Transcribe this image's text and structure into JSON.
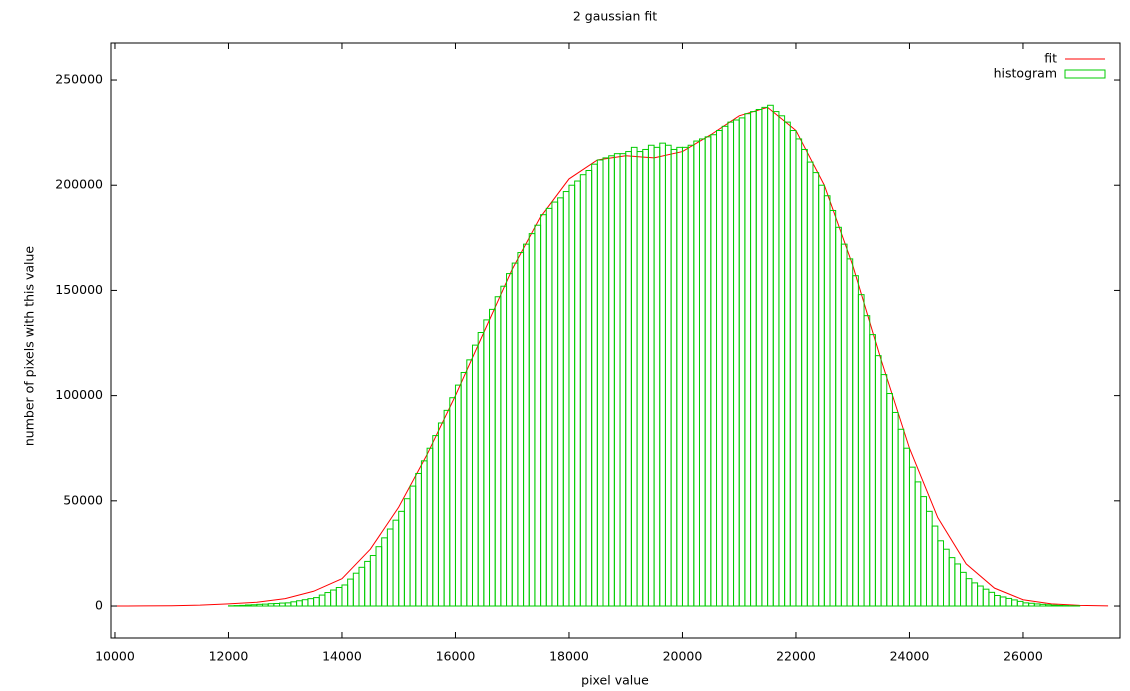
{
  "chart_data": {
    "type": "histogram",
    "title": "2 gaussian fit",
    "xlabel": "pixel value",
    "ylabel": "number of pixels with this value",
    "xlim": [
      9930,
      27710
    ],
    "ylim": [
      -15200,
      267600
    ],
    "xticks": [
      10000,
      12000,
      14000,
      16000,
      18000,
      20000,
      22000,
      24000,
      26000
    ],
    "yticks": [
      0,
      50000,
      100000,
      150000,
      200000,
      250000
    ],
    "legend": "top-right",
    "series": [
      {
        "name": "fit",
        "type": "line",
        "color": "#ff0000",
        "x": [
          10000,
          10500,
          11000,
          11500,
          12000,
          12500,
          13000,
          13500,
          14000,
          14500,
          15000,
          15500,
          16000,
          16500,
          17000,
          17500,
          18000,
          18500,
          19000,
          19500,
          20000,
          20500,
          21000,
          21500,
          22000,
          22500,
          23000,
          23500,
          24000,
          24500,
          25000,
          25500,
          26000,
          26500,
          27000,
          27500
        ],
        "values": [
          0,
          50,
          150,
          400,
          1000,
          1800,
          3500,
          7000,
          13000,
          27000,
          47000,
          72000,
          100000,
          130000,
          160000,
          185000,
          203000,
          212000,
          214000,
          213000,
          216000,
          224000,
          233000,
          237000,
          226000,
          200000,
          162000,
          117000,
          75000,
          42000,
          20000,
          8500,
          3000,
          1000,
          300,
          50
        ]
      },
      {
        "name": "histogram",
        "type": "histogram",
        "color": "#00cc00",
        "bins": [
          10700,
          10800,
          10900,
          11000,
          11100,
          11200,
          11300,
          11400,
          11500,
          11600,
          11700,
          11800,
          11900,
          12000,
          12100,
          12200,
          12300,
          12400,
          12500,
          12600,
          12700,
          12800,
          12900,
          13000,
          13100,
          13200,
          13300,
          13400,
          13500,
          13600,
          13700,
          13800,
          13900,
          14000,
          14100,
          14200,
          14300,
          14400,
          14500,
          14600,
          14700,
          14800,
          14900,
          15000,
          15100,
          15200,
          15300,
          15400,
          15500,
          15600,
          15700,
          15800,
          15900,
          16000,
          16100,
          16200,
          16300,
          16400,
          16500,
          16600,
          16700,
          16800,
          16900,
          17000,
          17100,
          17200,
          17300,
          17400,
          17500,
          17600,
          17700,
          17800,
          17900,
          18000,
          18100,
          18200,
          18300,
          18400,
          18500,
          18600,
          18700,
          18800,
          18900,
          19000,
          19100,
          19200,
          19300,
          19400,
          19500,
          19600,
          19700,
          19800,
          19900,
          20000,
          20100,
          20200,
          20300,
          20400,
          20500,
          20600,
          20700,
          20800,
          20900,
          21000,
          21100,
          21200,
          21300,
          21400,
          21500,
          21600,
          21700,
          21800,
          21900,
          22000,
          22100,
          22200,
          22300,
          22400,
          22500,
          22600,
          22700,
          22800,
          22900,
          23000,
          23100,
          23200,
          23300,
          23400,
          23500,
          23600,
          23700,
          23800,
          23900,
          24000,
          24100,
          24200,
          24300,
          24400,
          24500,
          24600,
          24700,
          24800,
          24900,
          25000,
          25100,
          25200,
          25300,
          25400,
          25500,
          25600,
          25700,
          25800,
          25900,
          26000,
          26100,
          26200,
          26300,
          26400,
          26500,
          26600,
          26700,
          26800,
          26900,
          27000,
          27100,
          27200,
          27300,
          27400,
          27500,
          27600,
          27700
        ],
        "values": [
          0,
          0,
          0,
          0,
          0,
          0,
          0,
          0,
          0,
          0,
          0,
          0,
          0,
          100,
          200,
          300,
          500,
          600,
          800,
          900,
          1100,
          1200,
          1400,
          1500,
          2000,
          2500,
          3000,
          3500,
          4000,
          5200,
          6400,
          7600,
          8800,
          10000,
          12800,
          15600,
          18400,
          21200,
          24000,
          28200,
          32400,
          36600,
          40800,
          45000,
          51000,
          57000,
          63000,
          69000,
          75000,
          81000,
          87000,
          93000,
          99000,
          105000,
          111000,
          117000,
          124000,
          130000,
          136000,
          141000,
          147000,
          152000,
          158000,
          163000,
          168000,
          172000,
          177000,
          181000,
          186000,
          189000,
          192000,
          194000,
          197000,
          200000,
          202000,
          205000,
          207000,
          210000,
          212000,
          213000,
          214000,
          215000,
          215000,
          216000,
          218000,
          216000,
          217000,
          219000,
          218000,
          220000,
          219000,
          217000,
          218000,
          218000,
          219000,
          221000,
          222000,
          223000,
          224000,
          226000,
          228000,
          230000,
          231000,
          232000,
          234000,
          235000,
          236000,
          237000,
          238000,
          235000,
          233000,
          230000,
          226000,
          222000,
          217000,
          211000,
          206000,
          200000,
          195000,
          188000,
          180000,
          172000,
          165000,
          157000,
          148000,
          138000,
          129000,
          119000,
          110000,
          101000,
          92000,
          84000,
          75000,
          66000,
          59000,
          52000,
          45000,
          38000,
          31000,
          27000,
          23000,
          20000,
          16000,
          13000,
          11000,
          9500,
          8000,
          6500,
          5000,
          4300,
          3600,
          2900,
          2200,
          1500,
          1300,
          1000,
          800,
          600,
          400,
          300,
          200,
          100,
          100,
          0,
          0,
          0,
          0,
          0,
          0,
          0
        ]
      }
    ]
  }
}
